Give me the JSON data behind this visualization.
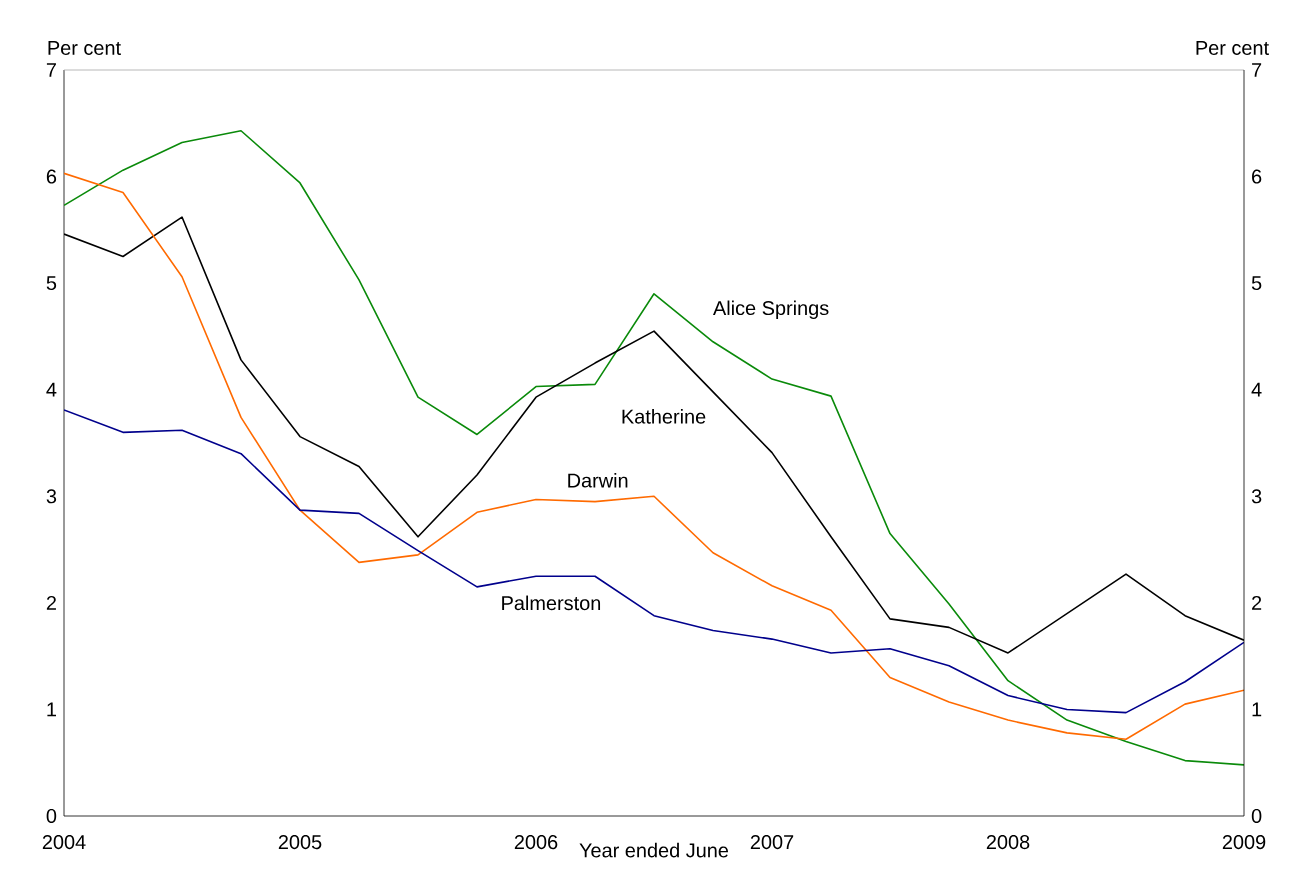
{
  "chart_data": {
    "type": "line",
    "xlabel": "Year ended June",
    "ylabel": "Per cent",
    "y2label": "Per cent",
    "x": [
      2004,
      2004.25,
      2004.5,
      2004.75,
      2005,
      2005.25,
      2005.5,
      2005.75,
      2006,
      2006.25,
      2006.5,
      2006.75,
      2007,
      2007.25,
      2007.5,
      2007.75,
      2008,
      2008.25,
      2008.5,
      2008.75,
      2009
    ],
    "xlim": [
      2004,
      2009
    ],
    "xticks": [
      2004,
      2005,
      2006,
      2007,
      2008,
      2009
    ],
    "ylim": [
      0,
      7
    ],
    "yticks": [
      0,
      1,
      2,
      3,
      4,
      5,
      6,
      7
    ],
    "y2lim": [
      0,
      7
    ],
    "y2ticks": [
      0,
      1,
      2,
      3,
      4,
      5,
      6,
      7
    ],
    "grid": false,
    "legend": false,
    "marker": "none",
    "line_style": "solid",
    "series": [
      {
        "name": "Alice Springs",
        "color": "#0a8a0a",
        "values": [
          5.73,
          6.06,
          6.32,
          6.43,
          5.94,
          5.03,
          3.93,
          3.58,
          4.03,
          4.05,
          4.9,
          4.45,
          4.1,
          3.94,
          2.65,
          1.99,
          1.27,
          0.9,
          0.7,
          0.52,
          0.48
        ]
      },
      {
        "name": "Katherine",
        "color": "#000000",
        "values": [
          5.46,
          5.25,
          5.62,
          4.28,
          3.56,
          3.28,
          2.62,
          3.2,
          3.93,
          4.25,
          4.55,
          3.98,
          3.41,
          2.62,
          1.85,
          1.77,
          1.53,
          1.9,
          2.27,
          1.88,
          1.65
        ]
      },
      {
        "name": "Darwin",
        "color": "#ff6a00",
        "values": [
          6.03,
          5.85,
          5.06,
          3.74,
          2.87,
          2.38,
          2.45,
          2.85,
          2.97,
          2.95,
          3.0,
          2.47,
          2.16,
          1.93,
          1.3,
          1.07,
          0.9,
          0.78,
          0.72,
          1.05,
          1.18
        ]
      },
      {
        "name": "Palmerston",
        "color": "#00008c",
        "values": [
          3.81,
          3.6,
          3.62,
          3.4,
          2.87,
          2.84,
          2.49,
          2.15,
          2.25,
          2.25,
          1.88,
          1.74,
          1.66,
          1.53,
          1.57,
          1.41,
          1.13,
          1.0,
          0.97,
          1.26,
          1.63
        ]
      }
    ]
  }
}
